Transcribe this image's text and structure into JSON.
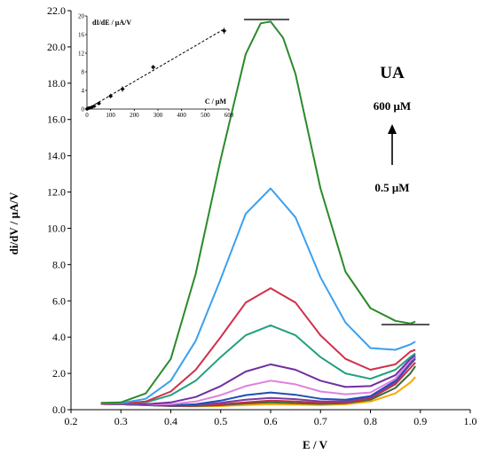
{
  "chart_data": {
    "type": "line",
    "xlabel": "E / V",
    "ylabel": "di/dV / μA/V",
    "xlim": [
      0.2,
      1.0
    ],
    "ylim": [
      0,
      22
    ],
    "xticks": [
      "0.2",
      "0.3",
      "0.4",
      "0.5",
      "0.6",
      "0.7",
      "0.8",
      "0.9",
      "1.0"
    ],
    "yticks": [
      "0.0",
      "2.0",
      "4.0",
      "6.0",
      "8.0",
      "10.0",
      "12.0",
      "14.0",
      "16.0",
      "18.0",
      "20.0",
      "22.0"
    ],
    "grid": false,
    "series": [
      {
        "color": "#ffa500",
        "x": [
          0.26,
          0.3,
          0.35,
          0.4,
          0.45,
          0.5,
          0.55,
          0.6,
          0.65,
          0.7,
          0.75,
          0.8,
          0.85,
          0.88,
          0.89
        ],
        "y": [
          0.32,
          0.3,
          0.25,
          0.2,
          0.18,
          0.2,
          0.26,
          0.3,
          0.28,
          0.26,
          0.3,
          0.45,
          0.9,
          1.5,
          1.8
        ]
      },
      {
        "color": "#3a6b35",
        "x": [
          0.26,
          0.3,
          0.35,
          0.4,
          0.45,
          0.5,
          0.55,
          0.6,
          0.65,
          0.7,
          0.75,
          0.8,
          0.85,
          0.88,
          0.89
        ],
        "y": [
          0.32,
          0.3,
          0.25,
          0.2,
          0.2,
          0.25,
          0.34,
          0.4,
          0.36,
          0.32,
          0.36,
          0.55,
          1.2,
          2.0,
          2.4
        ]
      },
      {
        "color": "#c0304a",
        "x": [
          0.26,
          0.3,
          0.35,
          0.4,
          0.45,
          0.5,
          0.55,
          0.6,
          0.65,
          0.7,
          0.75,
          0.8,
          0.85,
          0.88,
          0.89
        ],
        "y": [
          0.32,
          0.3,
          0.26,
          0.22,
          0.22,
          0.3,
          0.4,
          0.5,
          0.45,
          0.38,
          0.4,
          0.62,
          1.4,
          2.3,
          2.6
        ]
      },
      {
        "color": "#7a3fa0",
        "x": [
          0.26,
          0.3,
          0.35,
          0.4,
          0.45,
          0.5,
          0.55,
          0.6,
          0.65,
          0.7,
          0.75,
          0.8,
          0.85,
          0.88,
          0.89
        ],
        "y": [
          0.32,
          0.3,
          0.26,
          0.22,
          0.25,
          0.38,
          0.55,
          0.65,
          0.58,
          0.46,
          0.46,
          0.7,
          1.5,
          2.5,
          2.8
        ]
      },
      {
        "color": "#1f4fb5",
        "x": [
          0.26,
          0.3,
          0.35,
          0.4,
          0.45,
          0.5,
          0.55,
          0.6,
          0.65,
          0.7,
          0.75,
          0.8,
          0.85,
          0.88,
          0.89
        ],
        "y": [
          0.32,
          0.3,
          0.27,
          0.24,
          0.3,
          0.5,
          0.8,
          0.95,
          0.82,
          0.6,
          0.55,
          0.75,
          1.6,
          2.6,
          2.9
        ]
      },
      {
        "color": "#e080e0",
        "x": [
          0.26,
          0.3,
          0.35,
          0.4,
          0.45,
          0.5,
          0.55,
          0.6,
          0.65,
          0.7,
          0.75,
          0.8,
          0.85,
          0.88,
          0.89
        ],
        "y": [
          0.32,
          0.3,
          0.28,
          0.3,
          0.45,
          0.8,
          1.3,
          1.6,
          1.4,
          1.0,
          0.85,
          0.95,
          1.7,
          2.7,
          2.95
        ]
      },
      {
        "color": "#7030a0",
        "x": [
          0.26,
          0.3,
          0.35,
          0.4,
          0.45,
          0.5,
          0.55,
          0.6,
          0.65,
          0.7,
          0.75,
          0.8,
          0.85,
          0.88,
          0.89
        ],
        "y": [
          0.32,
          0.3,
          0.3,
          0.4,
          0.7,
          1.3,
          2.1,
          2.5,
          2.2,
          1.6,
          1.25,
          1.3,
          1.9,
          2.8,
          3.0
        ]
      },
      {
        "color": "#20a080",
        "x": [
          0.26,
          0.3,
          0.35,
          0.4,
          0.45,
          0.5,
          0.55,
          0.6,
          0.65,
          0.7,
          0.75,
          0.8,
          0.85,
          0.88,
          0.89
        ],
        "y": [
          0.32,
          0.32,
          0.4,
          0.8,
          1.6,
          2.9,
          4.1,
          4.65,
          4.1,
          2.9,
          2.0,
          1.7,
          2.2,
          2.9,
          3.1
        ]
      },
      {
        "color": "#d0304a",
        "x": [
          0.26,
          0.3,
          0.35,
          0.4,
          0.45,
          0.5,
          0.55,
          0.6,
          0.65,
          0.7,
          0.75,
          0.8,
          0.85,
          0.88,
          0.89
        ],
        "y": [
          0.32,
          0.33,
          0.45,
          1.0,
          2.2,
          4.0,
          5.9,
          6.7,
          5.9,
          4.1,
          2.8,
          2.2,
          2.5,
          3.2,
          3.3
        ]
      },
      {
        "color": "#3aa0f0",
        "x": [
          0.26,
          0.3,
          0.35,
          0.4,
          0.45,
          0.5,
          0.55,
          0.6,
          0.65,
          0.7,
          0.75,
          0.8,
          0.85,
          0.88,
          0.89
        ],
        "y": [
          0.35,
          0.36,
          0.6,
          1.6,
          3.8,
          7.2,
          10.8,
          12.2,
          10.6,
          7.3,
          4.8,
          3.4,
          3.3,
          3.6,
          3.75
        ]
      },
      {
        "color": "#2a8a2a",
        "x": [
          0.26,
          0.3,
          0.35,
          0.4,
          0.45,
          0.5,
          0.55,
          0.58,
          0.6,
          0.625,
          0.65,
          0.7,
          0.75,
          0.8,
          0.85,
          0.88,
          0.89
        ],
        "y": [
          0.38,
          0.4,
          0.9,
          2.8,
          7.5,
          13.8,
          19.6,
          21.3,
          21.4,
          20.5,
          18.5,
          12.2,
          7.6,
          5.6,
          4.9,
          4.75,
          4.85
        ]
      }
    ],
    "annotations": {
      "analyte": "UA",
      "conc_high": "600 μM",
      "conc_low": "0.5 μM"
    },
    "inset": {
      "type": "scatter",
      "ylabel": "dI/dE / μA/V",
      "xlabel": "C / μM",
      "xlim": [
        0,
        600
      ],
      "ylim": [
        0,
        20
      ],
      "xticks": [
        "0",
        "100",
        "200",
        "300",
        "400",
        "500",
        "600"
      ],
      "yticks": [
        "0",
        "4",
        "8",
        "12",
        "16",
        "20"
      ],
      "points": {
        "x": [
          0.5,
          5,
          10,
          20,
          30,
          50,
          100,
          150,
          280,
          580
        ],
        "y": [
          0.05,
          0.15,
          0.25,
          0.4,
          0.6,
          1.2,
          2.8,
          4.3,
          9.0,
          16.8
        ],
        "err": [
          0.1,
          0.1,
          0.1,
          0.15,
          0.2,
          0.3,
          0.5,
          0.6,
          0.5,
          0.7
        ]
      },
      "fit": {
        "x": [
          0,
          580
        ],
        "y": [
          0,
          17.2
        ]
      }
    }
  }
}
